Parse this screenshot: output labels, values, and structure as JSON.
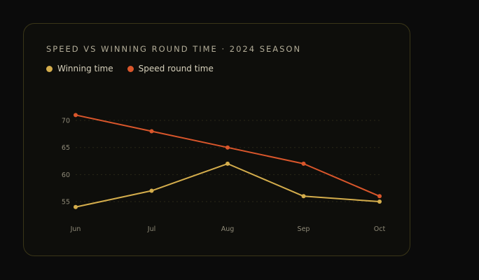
{
  "chart_data": {
    "type": "line",
    "title": "SPEED VS WINNING ROUND TIME · 2024 SEASON",
    "categories": [
      "Jun",
      "Jul",
      "Aug",
      "Sep",
      "Oct"
    ],
    "yticks": [
      55,
      60,
      65,
      70
    ],
    "ylim": [
      53,
      72
    ],
    "grid": true,
    "legend_position": "top-left",
    "series": [
      {
        "name": "Winning time",
        "color": "#d4ad4c",
        "values": [
          54,
          57,
          62,
          56,
          55
        ]
      },
      {
        "name": "Speed round time",
        "color": "#d9562b",
        "values": [
          71,
          68,
          65,
          62,
          56
        ]
      }
    ]
  }
}
